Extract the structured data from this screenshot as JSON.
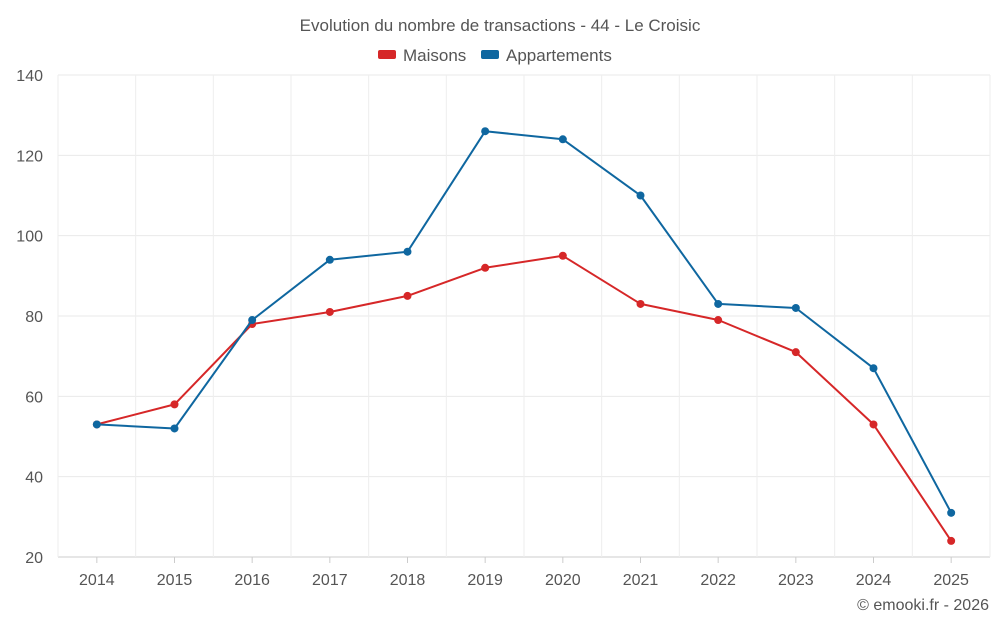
{
  "chart_data": {
    "type": "line",
    "title": "Evolution du nombre de transactions - 44 - Le Croisic",
    "categories": [
      "2014",
      "2015",
      "2016",
      "2017",
      "2018",
      "2019",
      "2020",
      "2021",
      "2022",
      "2023",
      "2024",
      "2025"
    ],
    "series": [
      {
        "name": "Maisons",
        "color": "#d62728",
        "values": [
          53,
          58,
          78,
          81,
          85,
          92,
          95,
          83,
          79,
          71,
          53,
          24
        ]
      },
      {
        "name": "Appartements",
        "color": "#0f67a0",
        "values": [
          53,
          52,
          79,
          94,
          96,
          126,
          124,
          110,
          83,
          82,
          67,
          31
        ]
      }
    ],
    "ylim": [
      20,
      140
    ],
    "yticks": [
      20,
      40,
      60,
      80,
      100,
      120,
      140
    ],
    "xlabel": "",
    "ylabel": "",
    "grid": true,
    "legend": "top-center",
    "credit": "© emooki.fr - 2026"
  }
}
